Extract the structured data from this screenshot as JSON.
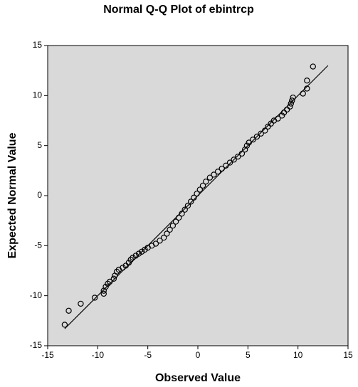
{
  "chart_data": {
    "type": "scatter",
    "title": "Normal Q-Q Plot of ebintrcp",
    "xlabel": "Observed Value",
    "ylabel": "Expected Normal Value",
    "x": [
      -13.3,
      -12.9,
      -11.7,
      -10.3,
      -9.4,
      -9.4,
      -9.2,
      -9.0,
      -8.8,
      -8.4,
      -8.3,
      -8.1,
      -7.9,
      -7.5,
      -7.2,
      -6.9,
      -6.7,
      -6.5,
      -6.2,
      -5.9,
      -5.6,
      -5.3,
      -5.0,
      -4.6,
      -4.2,
      -3.8,
      -3.4,
      -3.1,
      -2.8,
      -2.5,
      -2.2,
      -1.9,
      -1.6,
      -1.3,
      -1.0,
      -0.7,
      -0.4,
      -0.1,
      0.2,
      0.5,
      0.8,
      1.2,
      1.6,
      2.0,
      2.4,
      2.8,
      3.2,
      3.6,
      4.0,
      4.4,
      4.7,
      4.9,
      5.1,
      5.5,
      5.9,
      6.3,
      6.7,
      7.0,
      7.3,
      7.6,
      8.0,
      8.4,
      8.6,
      8.9,
      9.2,
      9.3,
      9.4,
      9.5,
      10.5,
      10.9,
      10.9,
      11.5
    ],
    "values": [
      -12.9,
      -11.5,
      -10.8,
      -10.2,
      -9.8,
      -9.5,
      -9.1,
      -8.8,
      -8.6,
      -8.3,
      -8.0,
      -7.6,
      -7.4,
      -7.2,
      -7.0,
      -6.7,
      -6.4,
      -6.2,
      -6.0,
      -5.8,
      -5.6,
      -5.4,
      -5.2,
      -5.0,
      -4.8,
      -4.5,
      -4.2,
      -3.8,
      -3.4,
      -3.0,
      -2.6,
      -2.2,
      -1.8,
      -1.4,
      -1.0,
      -0.6,
      -0.2,
      0.2,
      0.6,
      1.0,
      1.4,
      1.8,
      2.1,
      2.4,
      2.7,
      3.0,
      3.3,
      3.6,
      3.9,
      4.2,
      4.6,
      5.0,
      5.3,
      5.6,
      5.9,
      6.2,
      6.5,
      6.9,
      7.2,
      7.5,
      7.7,
      8.0,
      8.3,
      8.6,
      8.9,
      9.2,
      9.5,
      9.8,
      10.2,
      10.7,
      11.5,
      12.9
    ],
    "color": "#000000",
    "reference_line": {
      "x": [
        -13.3,
        13
      ],
      "y": [
        -13.3,
        13
      ]
    },
    "xlim": [
      -15,
      15
    ],
    "ylim": [
      -15,
      15
    ],
    "xticks": [
      -15,
      -10,
      -5,
      0,
      5,
      10,
      15
    ],
    "yticks": [
      -15,
      -10,
      -5,
      0,
      5,
      10,
      15
    ],
    "background": "#d9d9d9"
  }
}
